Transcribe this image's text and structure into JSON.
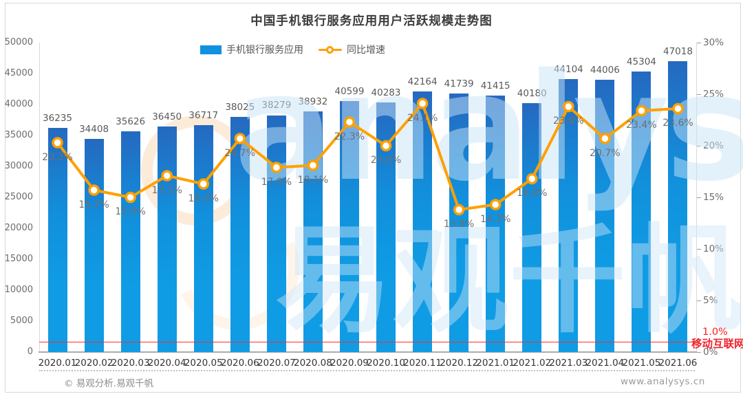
{
  "chart_data": {
    "type": "bar+line",
    "title": "中国手机银行服务应用用户活跃规模走势图",
    "categories": [
      "2020.01",
      "2020.02",
      "2020.03",
      "2020.04",
      "2020.05",
      "2020.06",
      "2020.07",
      "2020.08",
      "2020.09",
      "2020.10",
      "2020.11",
      "2020.12",
      "2021.01",
      "2021.02",
      "2021.03",
      "2021.04",
      "2021.05",
      "2021.06"
    ],
    "series": [
      {
        "name": "手机银行服务应用",
        "type": "bar",
        "axis": "left",
        "values": [
          36235,
          34408,
          35626,
          36450,
          36717,
          38025,
          38279,
          38932,
          40599,
          40283,
          42164,
          41739,
          41415,
          40180,
          44104,
          44006,
          45304,
          47018
        ],
        "color": "#1191e0"
      },
      {
        "name": "同比增速",
        "type": "line",
        "axis": "right",
        "values": [
          20.3,
          15.7,
          15.0,
          17.1,
          16.3,
          20.7,
          17.9,
          18.1,
          22.3,
          20.0,
          24.1,
          13.8,
          14.3,
          16.8,
          23.8,
          20.7,
          23.4,
          23.6
        ],
        "labels": [
          "20.3%",
          "15.7%",
          "15.0%",
          "17.1%",
          "16.3%",
          "20.7%",
          "17.9%",
          "18.1%",
          "22.3%",
          "20.0%",
          "24.1%",
          "13.8%",
          "14.3%",
          "16.8%",
          "23.8%",
          "20.7%",
          "23.4%",
          "23.6%"
        ],
        "color": "#ffa000"
      }
    ],
    "left_axis": {
      "ticks": [
        0,
        5000,
        10000,
        15000,
        20000,
        25000,
        30000,
        35000,
        40000,
        45000,
        50000
      ],
      "min": 0,
      "max": 50000
    },
    "right_axis": {
      "ticks": [
        "0%",
        "5%",
        "10%",
        "15%",
        "20%",
        "25%",
        "30%"
      ],
      "tick_values": [
        0,
        5,
        10,
        15,
        20,
        25,
        30
      ],
      "min": 0,
      "max": 30
    },
    "grid": "off",
    "legend_position": "top-center",
    "annotations": {
      "red_line_value_pct": 1.0,
      "red_line_label": "1.0%"
    }
  },
  "watermarks": {
    "latin": "analysys",
    "cjk": "易观千帆",
    "red_text": "移动互联网"
  },
  "footer": {
    "left": "© 易观分析.易观千帆",
    "right": "www.analysys.cn"
  },
  "colors": {
    "bar": "#1191e0",
    "bar_top": "#2569c0",
    "line": "#ffa000",
    "red": "#ff1a1a",
    "title_text": "#3c3c3c",
    "axis_text": "#6b6b6b"
  }
}
